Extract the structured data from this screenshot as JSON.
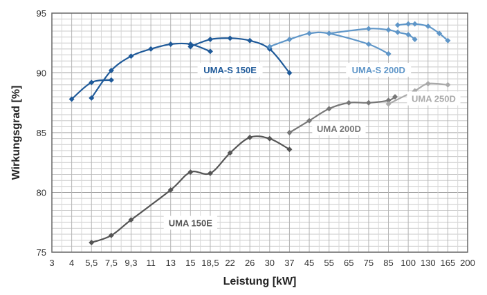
{
  "chart_data": {
    "type": "line",
    "xlabel": "Leistung [kW]",
    "ylabel": "Wirkungsgrad  [%]",
    "xlim": [
      3,
      200
    ],
    "ylim": [
      75,
      95
    ],
    "grid": true,
    "x_ticks": [
      "3",
      "4",
      "5,5",
      "7,5",
      "9,3",
      "11",
      "13",
      "15",
      "18,5",
      "22",
      "26",
      "30",
      "37",
      "45",
      "55",
      "65",
      "75",
      "85",
      "100",
      "130",
      "165",
      "200"
    ],
    "y_ticks": [
      "75",
      "80",
      "85",
      "90",
      "95"
    ],
    "series": [
      {
        "name": "UMA-S 150E",
        "color": "#1f5a99",
        "curves": [
          [
            [
              4,
              87.8
            ],
            [
              5.5,
              89.2
            ],
            [
              7.5,
              89.4
            ]
          ],
          [
            [
              5.5,
              87.9
            ],
            [
              7.5,
              90.2
            ],
            [
              9.3,
              91.4
            ],
            [
              11,
              92.0
            ],
            [
              13,
              92.4
            ],
            [
              15,
              92.4
            ],
            [
              18.5,
              91.8
            ]
          ],
          [
            [
              15,
              92.2
            ],
            [
              18.5,
              92.8
            ],
            [
              22,
              92.9
            ],
            [
              26,
              92.7
            ],
            [
              30,
              92.0
            ],
            [
              37,
              90.0
            ]
          ]
        ]
      },
      {
        "name": "UMA-S 200D",
        "color": "#5f96c8",
        "curves": [
          [
            [
              30,
              92.2
            ],
            [
              37,
              92.8
            ],
            [
              45,
              93.3
            ],
            [
              55,
              93.3
            ],
            [
              75,
              92.4
            ],
            [
              85,
              91.6
            ]
          ],
          [
            [
              55,
              93.3
            ],
            [
              75,
              93.7
            ],
            [
              85,
              93.6
            ],
            [
              92,
              93.4
            ],
            [
              100,
              93.2
            ],
            [
              110,
              92.8
            ]
          ],
          [
            [
              92,
              94.0
            ],
            [
              100,
              94.1
            ],
            [
              110,
              94.1
            ],
            [
              130,
              93.9
            ],
            [
              150,
              93.3
            ],
            [
              165,
              92.7
            ]
          ]
        ]
      },
      {
        "name": "UMA 150E",
        "color": "#555555",
        "curves": [
          [
            [
              5.5,
              75.8
            ],
            [
              7.5,
              76.4
            ],
            [
              9.3,
              77.7
            ],
            [
              13,
              80.2
            ],
            [
              15,
              81.7
            ],
            [
              18.5,
              81.6
            ],
            [
              22,
              83.3
            ],
            [
              26,
              84.6
            ],
            [
              30,
              84.5
            ],
            [
              37,
              83.6
            ]
          ]
        ]
      },
      {
        "name": "UMA 200D",
        "color": "#777777",
        "curves": [
          [
            [
              37,
              85.0
            ],
            [
              45,
              86.0
            ],
            [
              55,
              87.0
            ],
            [
              65,
              87.5
            ],
            [
              75,
              87.5
            ],
            [
              85,
              87.7
            ],
            [
              90,
              88.0
            ]
          ]
        ]
      },
      {
        "name": "UMA 250D",
        "color": "#aaaaaa",
        "curves": [
          [
            [
              85,
              87.4
            ],
            [
              110,
              88.5
            ],
            [
              130,
              89.1
            ],
            [
              165,
              89.0
            ]
          ]
        ]
      }
    ],
    "labels": [
      {
        "text": "UMA-S 150E",
        "x": 22,
        "y": 90.2,
        "series": 0
      },
      {
        "text": "UMA-S 200D",
        "x": 80,
        "y": 90.2,
        "series": 1
      },
      {
        "text": "UMA 150E",
        "x": 15,
        "y": 77.4,
        "series": 2
      },
      {
        "text": "UMA 200D",
        "x": 60,
        "y": 85.3,
        "series": 3
      },
      {
        "text": "UMA 250D",
        "x": 140,
        "y": 87.8,
        "series": 4
      }
    ]
  }
}
